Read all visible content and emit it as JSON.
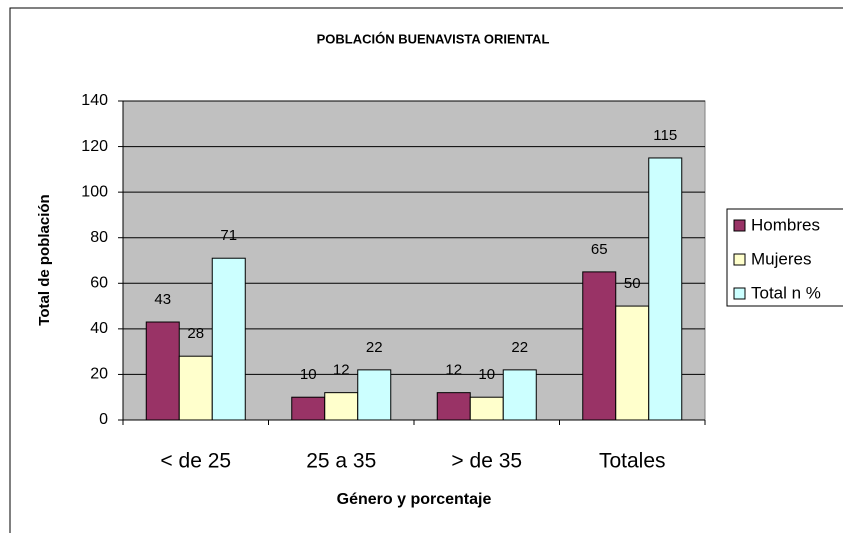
{
  "chart_data": {
    "type": "bar",
    "title": "POBLACIÓN BUENAVISTA ORIENTAL",
    "x_label": "Género y porcentaje",
    "y_label": "Total de población",
    "categories": [
      "< de 25",
      "25 a 35",
      "> de 35",
      "Totales"
    ],
    "series": [
      {
        "name": "Hombres",
        "color": "#993366",
        "values": [
          43,
          10,
          12,
          65
        ]
      },
      {
        "name": "Mujeres",
        "color": "#ffffcc",
        "values": [
          28,
          12,
          10,
          50
        ]
      },
      {
        "name": "Total n %",
        "color": "#ccffff",
        "values": [
          71,
          22,
          22,
          115
        ]
      }
    ],
    "ylim": [
      0,
      140
    ],
    "yticks": [
      0,
      20,
      40,
      60,
      80,
      100,
      120,
      140
    ],
    "grid": true,
    "legend": "right"
  }
}
